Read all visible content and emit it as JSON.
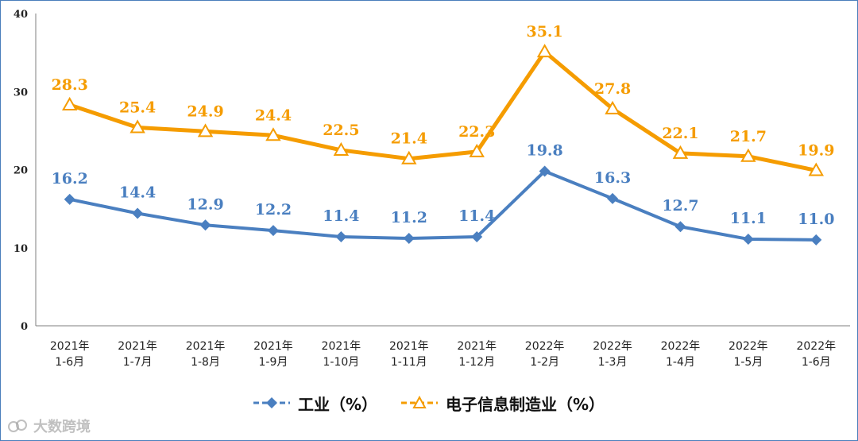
{
  "colors": {
    "series1": "#4a7fc0",
    "series2": "#f59c00",
    "axis": "#7f7f7f",
    "border": "#4a7ebb"
  },
  "legend": {
    "series1": "工业（%）",
    "series2": "电子信息制造业（%）"
  },
  "watermark": {
    "text": "大数跨境",
    "logo_icon": "link-logo-icon"
  },
  "chart_data": {
    "type": "line",
    "categories": [
      [
        "2021年",
        "1-6月"
      ],
      [
        "2021年",
        "1-7月"
      ],
      [
        "2021年",
        "1-8月"
      ],
      [
        "2021年",
        "1-9月"
      ],
      [
        "2021年",
        "1-10月"
      ],
      [
        "2021年",
        "1-11月"
      ],
      [
        "2021年",
        "1-12月"
      ],
      [
        "2022年",
        "1-2月"
      ],
      [
        "2022年",
        "1-3月"
      ],
      [
        "2022年",
        "1-4月"
      ],
      [
        "2022年",
        "1-5月"
      ],
      [
        "2022年",
        "1-6月"
      ]
    ],
    "series": [
      {
        "name": "工业（%）",
        "marker": "diamond",
        "values": [
          16.2,
          14.4,
          12.9,
          12.2,
          11.4,
          11.2,
          11.4,
          19.8,
          16.3,
          12.7,
          11.1,
          11.0
        ],
        "labels": [
          "16.2",
          "14.4",
          "12.9",
          "12.2",
          "11.4",
          "11.2",
          "11.4",
          "19.8",
          "16.3",
          "12.7",
          "11.1",
          "11.0"
        ]
      },
      {
        "name": "电子信息制造业（%）",
        "marker": "triangle",
        "values": [
          28.3,
          25.4,
          24.9,
          24.4,
          22.5,
          21.4,
          22.3,
          35.1,
          27.8,
          22.1,
          21.7,
          19.9
        ],
        "labels": [
          "28.3",
          "25.4",
          "24.9",
          "24.4",
          "22.5",
          "21.4",
          "22.3",
          "35.1",
          "27.8",
          "22.1",
          "21.7",
          "19.9"
        ]
      }
    ],
    "yticks": [
      "0",
      "10",
      "20",
      "30",
      "40"
    ],
    "ylim": [
      0,
      40
    ],
    "grid": false,
    "legend_position": "bottom"
  }
}
